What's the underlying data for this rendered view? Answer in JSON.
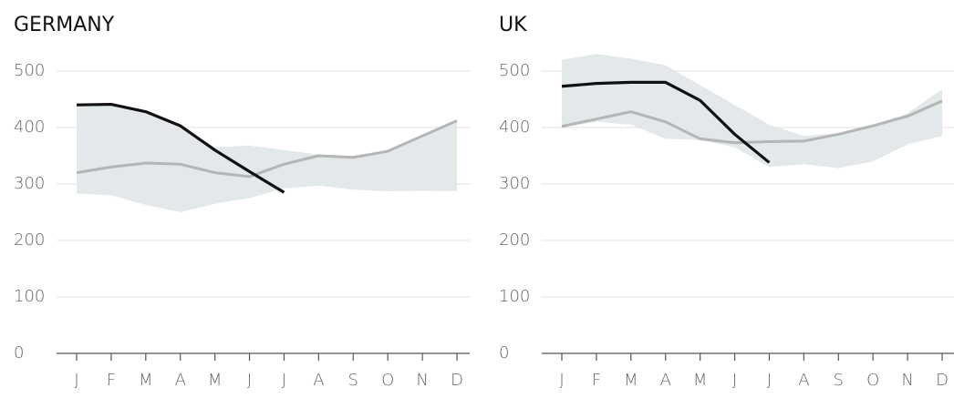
{
  "chart_data": [
    {
      "type": "line",
      "title": "GERMANY",
      "categories": [
        "J",
        "F",
        "M",
        "A",
        "M",
        "J",
        "J",
        "A",
        "S",
        "O",
        "N",
        "D"
      ],
      "range": {
        "color": "#e3e8eb",
        "low": [
          283,
          280,
          263,
          250,
          265,
          275,
          292,
          297,
          290,
          287,
          288,
          287
        ],
        "high": [
          440,
          441,
          428,
          403,
          365,
          368,
          360,
          352,
          350,
          358,
          385,
          412
        ]
      },
      "series": [
        {
          "color": "#b5b5b5",
          "values": [
            320,
            330,
            337,
            335,
            320,
            313,
            335,
            350,
            347,
            358,
            385,
            412
          ]
        },
        {
          "color": "#111111",
          "values": [
            440,
            441,
            428,
            403,
            360,
            322,
            285,
            null,
            null,
            null,
            null,
            null
          ]
        }
      ],
      "ylim": [
        0,
        500
      ],
      "yticks": [
        0,
        100,
        200,
        300,
        400,
        500
      ],
      "grid": true
    },
    {
      "type": "line",
      "title": "UK",
      "categories": [
        "J",
        "F",
        "M",
        "A",
        "M",
        "J",
        "J",
        "A",
        "S",
        "O",
        "N",
        "D"
      ],
      "range": {
        "color": "#e3e8eb",
        "low": [
          400,
          410,
          405,
          380,
          378,
          365,
          330,
          335,
          328,
          340,
          370,
          385
        ],
        "high": [
          520,
          530,
          522,
          510,
          475,
          440,
          405,
          385,
          390,
          405,
          425,
          468
        ]
      },
      "series": [
        {
          "color": "#b5b5b5",
          "values": [
            402,
            415,
            428,
            410,
            380,
            373,
            375,
            376,
            388,
            403,
            420,
            447
          ]
        },
        {
          "color": "#111111",
          "values": [
            473,
            478,
            480,
            480,
            448,
            388,
            338,
            null,
            null,
            null,
            null,
            null
          ]
        }
      ],
      "ylim": [
        0,
        500
      ],
      "yticks": [
        0,
        100,
        200,
        300,
        400,
        500
      ],
      "grid": true
    }
  ]
}
